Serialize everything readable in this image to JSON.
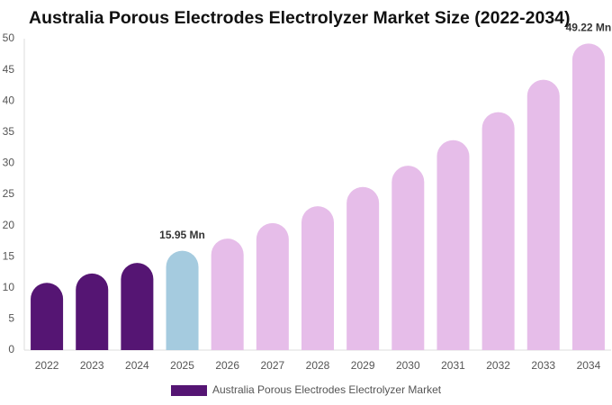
{
  "chart_data": {
    "type": "bar",
    "title": "Australia Porous Electrodes Electrolyzer Market Size (2022-2034)",
    "categories": [
      "2022",
      "2023",
      "2024",
      "2025",
      "2026",
      "2027",
      "2028",
      "2029",
      "2030",
      "2031",
      "2032",
      "2033",
      "2034"
    ],
    "series": [
      {
        "name": "Australia Porous Electrodes Electrolyzer Market",
        "color": "#551573",
        "values": [
          10.8,
          12.3,
          14.0,
          15.95,
          17.9,
          20.4,
          23.1,
          26.2,
          29.6,
          33.7,
          38.2,
          43.4,
          49.22
        ],
        "colors": [
          "#551573",
          "#551573",
          "#551573",
          "#a5cbdf",
          "#e6bde9",
          "#e6bde9",
          "#e6bde9",
          "#e6bde9",
          "#e6bde9",
          "#e6bde9",
          "#e6bde9",
          "#e6bde9",
          "#e6bde9"
        ],
        "value_labels": [
          null,
          null,
          null,
          "15.95 Mn",
          null,
          null,
          null,
          null,
          null,
          null,
          null,
          null,
          "49.22 Mn"
        ]
      }
    ],
    "ylim": [
      0,
      50
    ],
    "yticks": [
      0,
      5,
      10,
      15,
      20,
      25,
      30,
      35,
      40,
      45,
      50
    ],
    "grid": false
  }
}
